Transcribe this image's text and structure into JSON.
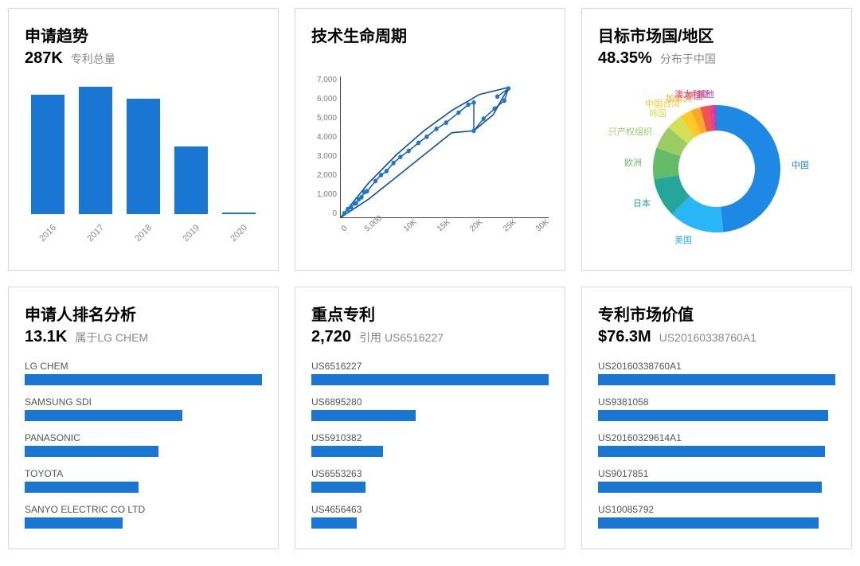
{
  "colors": {
    "primary": "#1976d2",
    "text": "#000000",
    "muted": "#8a8a8a",
    "border": "#d8d8d8",
    "line_dark": "#0b4f9e"
  },
  "card1": {
    "title": "申请趋势",
    "stat": "287K",
    "stat_label": "专利总量",
    "chart": {
      "type": "bar",
      "categories": [
        "2016",
        "2017",
        "2018",
        "2019",
        "2020"
      ],
      "values": [
        150,
        160,
        145,
        85,
        2
      ],
      "ymax": 170,
      "bar_color": "#1976d2"
    }
  },
  "card2": {
    "title": "技术生命周期",
    "chart": {
      "type": "line-scatter",
      "yticks": [
        "0",
        "1,000",
        "2,000",
        "3,000",
        "4,000",
        "5,000",
        "6,000",
        "7,000"
      ],
      "xticks": [
        "0",
        "5,000",
        "10K",
        "15K",
        "20K",
        "25K",
        "30K"
      ],
      "xlim": [
        0,
        30000
      ],
      "ylim": [
        0,
        7000
      ],
      "series_points": [
        [
          500,
          200
        ],
        [
          1000,
          400
        ],
        [
          1500,
          500
        ],
        [
          2000,
          700
        ],
        [
          2200,
          700
        ],
        [
          2600,
          900
        ],
        [
          3000,
          1000
        ],
        [
          3400,
          1250
        ],
        [
          3800,
          1300
        ],
        [
          5000,
          1800
        ],
        [
          5800,
          2100
        ],
        [
          6600,
          2300
        ],
        [
          7600,
          2700
        ],
        [
          8600,
          3000
        ],
        [
          9800,
          3300
        ],
        [
          11200,
          3700
        ],
        [
          12400,
          4000
        ],
        [
          13800,
          4400
        ],
        [
          15200,
          4700
        ],
        [
          17000,
          5200
        ],
        [
          18400,
          5600
        ],
        [
          19200,
          5700
        ],
        [
          19200,
          4300
        ],
        [
          20600,
          4900
        ],
        [
          22200,
          5400
        ],
        [
          23600,
          5800
        ],
        [
          24200,
          6400
        ],
        [
          22600,
          6000
        ]
      ],
      "envelope_upper": [
        [
          0,
          0
        ],
        [
          4000,
          1700
        ],
        [
          8000,
          3100
        ],
        [
          12000,
          4300
        ],
        [
          16000,
          5300
        ],
        [
          20000,
          6100
        ],
        [
          24200,
          6450
        ]
      ],
      "envelope_lower": [
        [
          0,
          0
        ],
        [
          4000,
          900
        ],
        [
          8000,
          2000
        ],
        [
          12000,
          3100
        ],
        [
          16000,
          4200
        ],
        [
          19200,
          4300
        ],
        [
          22000,
          5100
        ],
        [
          24200,
          6450
        ]
      ],
      "line_color": "#0b4f9e",
      "marker_color": "#1976d2",
      "marker_radius": 3
    }
  },
  "card3": {
    "title": "目标市场国/地区",
    "stat": "48.35%",
    "stat_label": "分布于中国",
    "chart": {
      "type": "donut",
      "inner_radius": 48,
      "outer_radius": 80,
      "slices": [
        {
          "label": "中国",
          "value": 48.35,
          "color": "#1e88e5"
        },
        {
          "label": "美国",
          "value": 14.0,
          "color": "#29b6f6"
        },
        {
          "label": "日本",
          "value": 10.0,
          "color": "#26a69a"
        },
        {
          "label": "欧洲",
          "value": 8.0,
          "color": "#66bb6a"
        },
        {
          "label": "只产权组织",
          "value": 6.0,
          "color": "#9ccc65"
        },
        {
          "label": "韩国",
          "value": 4.0,
          "color": "#d4e157"
        },
        {
          "label": "中国台湾",
          "value": 3.0,
          "color": "#ffca28"
        },
        {
          "label": "加拿大",
          "value": 2.5,
          "color": "#ffa726"
        },
        {
          "label": "德国",
          "value": 2.0,
          "color": "#ef5350"
        },
        {
          "label": "澳大利亚",
          "value": 1.15,
          "color": "#ec407a"
        },
        {
          "label": "其他",
          "value": 1.0,
          "color": "#ab47bc"
        }
      ]
    }
  },
  "card4": {
    "title": "申请人排名分析",
    "stat": "13.1K",
    "stat_label": "属于LG CHEM",
    "chart": {
      "type": "hbar",
      "max": 13100,
      "bar_color": "#1976d2",
      "items": [
        {
          "label": "LG CHEM",
          "value": 13100
        },
        {
          "label": "SAMSUNG SDI",
          "value": 8700
        },
        {
          "label": "PANASONIC",
          "value": 7400
        },
        {
          "label": "TOYOTA",
          "value": 6300
        },
        {
          "label": "SANYO ELECTRIC CO LTD",
          "value": 5400
        }
      ]
    }
  },
  "card5": {
    "title": "重点专利",
    "stat": "2,720",
    "stat_label": "引用 US6516227",
    "chart": {
      "type": "hbar",
      "max": 2720,
      "bar_color": "#1976d2",
      "items": [
        {
          "label": "US6516227",
          "value": 2720
        },
        {
          "label": "US6895280",
          "value": 1200
        },
        {
          "label": "US5910382",
          "value": 820
        },
        {
          "label": "US6553263",
          "value": 620
        },
        {
          "label": "US4656463",
          "value": 520
        }
      ]
    }
  },
  "card6": {
    "title": "专利市场价值",
    "stat": "$76.3M",
    "stat_label": "US20160338760A1",
    "chart": {
      "type": "hbar",
      "max": 76.3,
      "bar_color": "#1976d2",
      "items": [
        {
          "label": "US20160338760A1",
          "value": 76.3
        },
        {
          "label": "US9381058",
          "value": 74.0
        },
        {
          "label": "US20160329614A1",
          "value": 73.0
        },
        {
          "label": "US9017851",
          "value": 72.0
        },
        {
          "label": "US10085792",
          "value": 71.0
        }
      ]
    }
  }
}
